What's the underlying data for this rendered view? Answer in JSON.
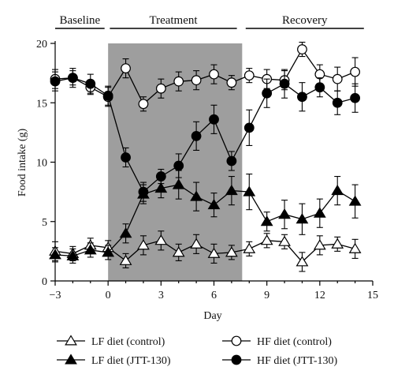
{
  "chart_data": {
    "type": "line",
    "xlabel": "Day",
    "ylabel": "Food intake (g)",
    "xlim": [
      -3,
      15
    ],
    "ylim": [
      0,
      20
    ],
    "x_ticks": [
      -3,
      0,
      3,
      6,
      9,
      12,
      15
    ],
    "y_ticks": [
      0,
      5,
      10,
      15,
      20
    ],
    "phases": [
      {
        "label": "Baseline",
        "start": -3,
        "end": -0.2
      },
      {
        "label": "Treatment",
        "start": 0.1,
        "end": 7.3
      },
      {
        "label": "Recovery",
        "start": 7.8,
        "end": 14.5
      }
    ],
    "shaded_region": {
      "start": 0,
      "end": 7.6,
      "color": "#9e9e9e"
    },
    "series": [
      {
        "name": "LF diet (control)",
        "marker": "triangle",
        "fill": "#ffffff",
        "points": [
          {
            "x": -3,
            "y": 2.5,
            "err": 0.8
          },
          {
            "x": -2,
            "y": 2.3,
            "err": 0.6
          },
          {
            "x": -1,
            "y": 3.0,
            "err": 0.6
          },
          {
            "x": 0,
            "y": 2.8,
            "err": 0.6
          },
          {
            "x": 1,
            "y": 1.7,
            "err": 0.6
          },
          {
            "x": 2,
            "y": 3.0,
            "err": 0.8
          },
          {
            "x": 3,
            "y": 3.4,
            "err": 0.8
          },
          {
            "x": 4,
            "y": 2.4,
            "err": 0.7
          },
          {
            "x": 5,
            "y": 3.1,
            "err": 0.8
          },
          {
            "x": 6,
            "y": 2.3,
            "err": 0.8
          },
          {
            "x": 7,
            "y": 2.4,
            "err": 0.6
          },
          {
            "x": 8,
            "y": 2.7,
            "err": 0.6
          },
          {
            "x": 9,
            "y": 3.4,
            "err": 0.6
          },
          {
            "x": 10,
            "y": 3.3,
            "err": 0.6
          },
          {
            "x": 11,
            "y": 1.6,
            "err": 0.8
          },
          {
            "x": 12,
            "y": 3.0,
            "err": 0.8
          },
          {
            "x": 13,
            "y": 3.1,
            "err": 0.6
          },
          {
            "x": 14,
            "y": 2.7,
            "err": 0.8
          }
        ]
      },
      {
        "name": "LF diet (JTT-130)",
        "marker": "triangle",
        "fill": "#000000",
        "points": [
          {
            "x": -3,
            "y": 2.2,
            "err": 0.6
          },
          {
            "x": -2,
            "y": 2.1,
            "err": 0.6
          },
          {
            "x": -1,
            "y": 2.6,
            "err": 0.6
          },
          {
            "x": 0,
            "y": 2.4,
            "err": 0.6
          },
          {
            "x": 1,
            "y": 4.0,
            "err": 0.8
          },
          {
            "x": 2,
            "y": 7.3,
            "err": 0.8
          },
          {
            "x": 3,
            "y": 7.8,
            "err": 0.8
          },
          {
            "x": 4,
            "y": 8.1,
            "err": 1.2
          },
          {
            "x": 5,
            "y": 7.1,
            "err": 1.2
          },
          {
            "x": 6,
            "y": 6.4,
            "err": 1.0
          },
          {
            "x": 7,
            "y": 7.6,
            "err": 1.2
          },
          {
            "x": 8,
            "y": 7.5,
            "err": 1.5
          },
          {
            "x": 9,
            "y": 5.0,
            "err": 0.8
          },
          {
            "x": 10,
            "y": 5.6,
            "err": 1.2
          },
          {
            "x": 11,
            "y": 5.2,
            "err": 1.3
          },
          {
            "x": 12,
            "y": 5.7,
            "err": 1.2
          },
          {
            "x": 13,
            "y": 7.6,
            "err": 1.2
          },
          {
            "x": 14,
            "y": 6.7,
            "err": 1.4
          }
        ]
      },
      {
        "name": "HF diet (control)",
        "marker": "circle",
        "fill": "#ffffff",
        "points": [
          {
            "x": -3,
            "y": 17.0,
            "err": 0.8
          },
          {
            "x": -2,
            "y": 17.1,
            "err": 0.6
          },
          {
            "x": -1,
            "y": 16.3,
            "err": 0.6
          },
          {
            "x": 0,
            "y": 15.5,
            "err": 0.8
          },
          {
            "x": 1,
            "y": 17.9,
            "err": 0.8
          },
          {
            "x": 2,
            "y": 14.9,
            "err": 0.6
          },
          {
            "x": 3,
            "y": 16.2,
            "err": 0.8
          },
          {
            "x": 4,
            "y": 16.8,
            "err": 0.8
          },
          {
            "x": 5,
            "y": 16.9,
            "err": 0.8
          },
          {
            "x": 6,
            "y": 17.4,
            "err": 0.8
          },
          {
            "x": 7,
            "y": 16.7,
            "err": 0.6
          },
          {
            "x": 8,
            "y": 17.3,
            "err": 0.6
          },
          {
            "x": 9,
            "y": 17.0,
            "err": 0.8
          },
          {
            "x": 10,
            "y": 16.9,
            "err": 0.8
          },
          {
            "x": 11,
            "y": 19.5,
            "err": 0.6
          },
          {
            "x": 12,
            "y": 17.4,
            "err": 0.8
          },
          {
            "x": 13,
            "y": 17.0,
            "err": 1.0
          },
          {
            "x": 14,
            "y": 17.6,
            "err": 1.2
          }
        ]
      },
      {
        "name": "HF diet (JTT-130)",
        "marker": "circle",
        "fill": "#000000",
        "points": [
          {
            "x": -3,
            "y": 16.8,
            "err": 0.8
          },
          {
            "x": -2,
            "y": 17.1,
            "err": 0.8
          },
          {
            "x": -1,
            "y": 16.6,
            "err": 0.8
          },
          {
            "x": 0,
            "y": 15.6,
            "err": 0.8
          },
          {
            "x": 1,
            "y": 10.4,
            "err": 0.8
          },
          {
            "x": 2,
            "y": 7.5,
            "err": 0.8
          },
          {
            "x": 3,
            "y": 8.8,
            "err": 0.6
          },
          {
            "x": 4,
            "y": 9.7,
            "err": 1.0
          },
          {
            "x": 5,
            "y": 12.2,
            "err": 1.2
          },
          {
            "x": 6,
            "y": 13.6,
            "err": 1.2
          },
          {
            "x": 7,
            "y": 10.1,
            "err": 0.8
          },
          {
            "x": 8,
            "y": 12.9,
            "err": 1.5
          },
          {
            "x": 9,
            "y": 15.8,
            "err": 1.2
          },
          {
            "x": 10,
            "y": 16.6,
            "err": 1.2
          },
          {
            "x": 11,
            "y": 15.5,
            "err": 1.2
          },
          {
            "x": 12,
            "y": 16.3,
            "err": 0.8
          },
          {
            "x": 13,
            "y": 15.0,
            "err": 1.0
          },
          {
            "x": 14,
            "y": 15.4,
            "err": 1.2
          }
        ]
      }
    ]
  }
}
